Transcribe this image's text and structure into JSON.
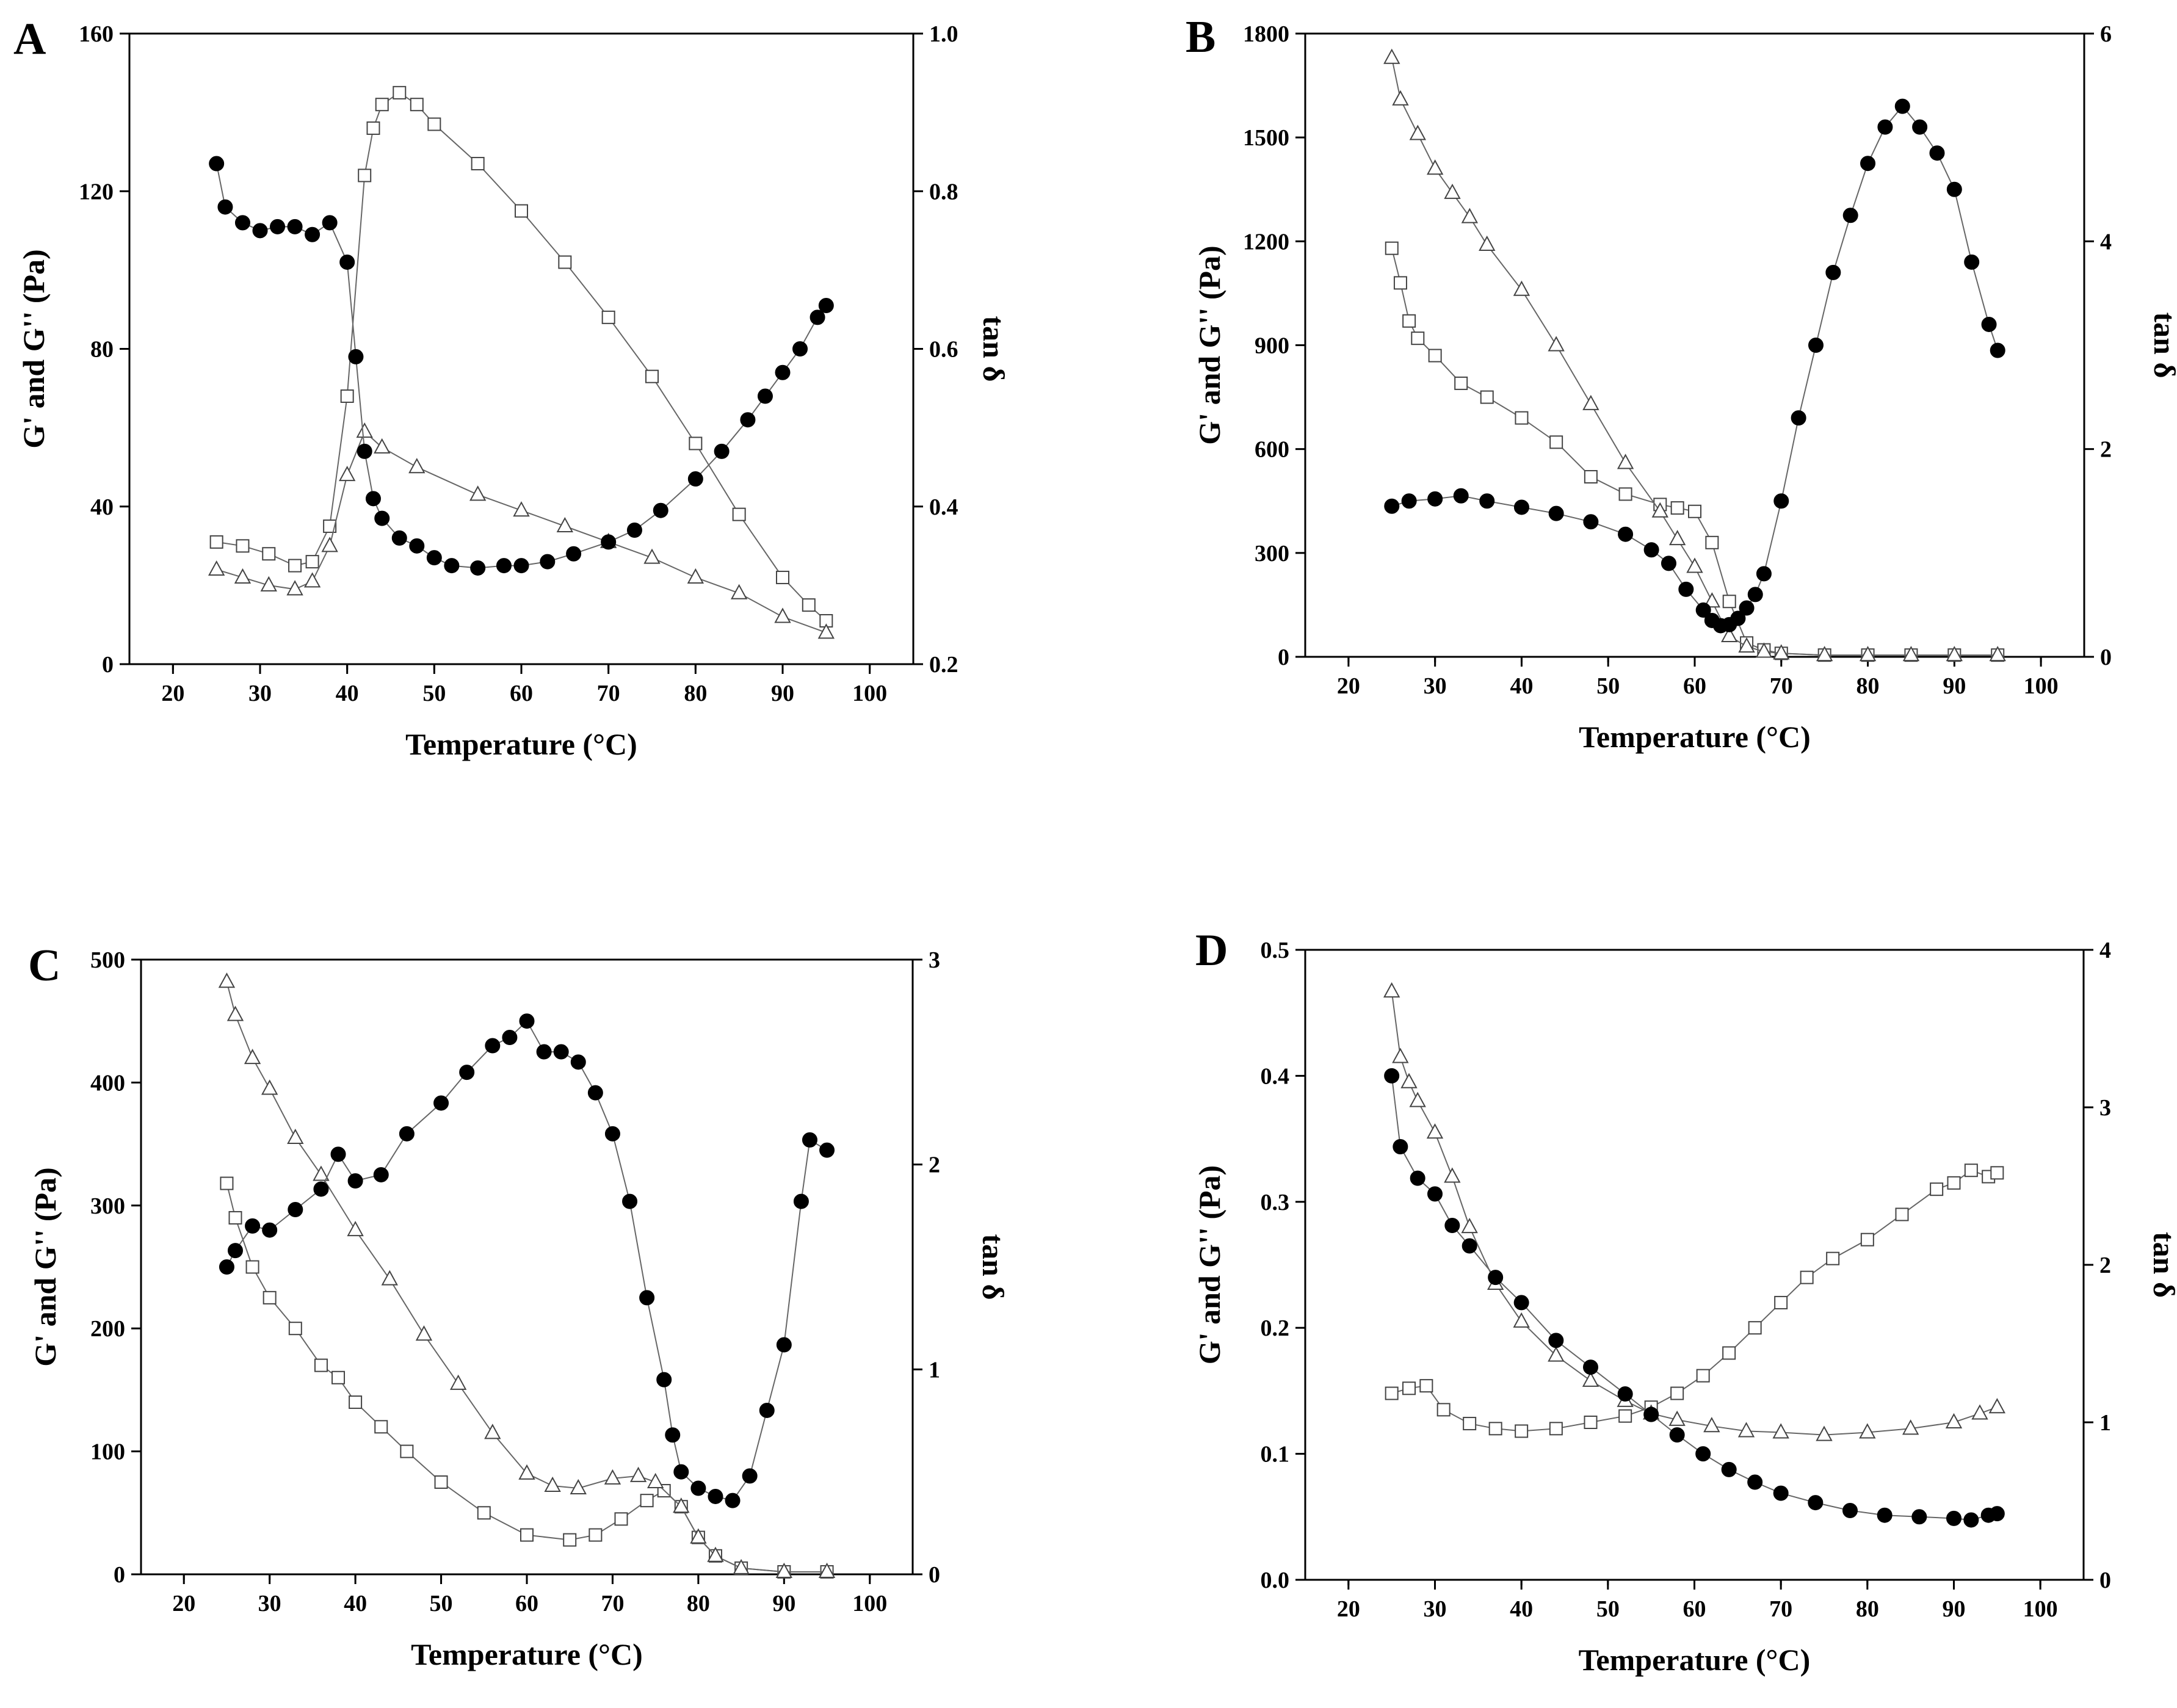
{
  "figure_title": "",
  "chart_data": [
    {
      "panel": "A",
      "type": "scatter",
      "xlabel": "Temperature (°C)",
      "ylabel": "G' and G'' (Pa)",
      "y2label": "tan δ",
      "xlim": [
        15,
        105
      ],
      "xticks": [
        20,
        30,
        40,
        50,
        60,
        70,
        80,
        90,
        100
      ],
      "ylim": [
        0,
        160
      ],
      "yticks": [
        0,
        40,
        80,
        120,
        160
      ],
      "y2lim": [
        0.2,
        1.0
      ],
      "y2ticks": [
        0.2,
        0.4,
        0.6,
        0.8,
        1.0
      ],
      "y2tick_labels": [
        "0.2",
        "0.4",
        "0.6",
        "0.8",
        "1.0"
      ],
      "series": [
        {
          "name": "G'",
          "marker": "square",
          "axis": "left",
          "x": [
            25,
            28,
            31,
            34,
            36,
            38,
            40,
            42,
            43,
            44,
            46,
            48,
            50,
            55,
            60,
            65,
            70,
            75,
            80,
            85,
            90,
            93,
            95
          ],
          "y": [
            31,
            30,
            28,
            25,
            26,
            35,
            68,
            124,
            136,
            142,
            145,
            142,
            137,
            127,
            115,
            102,
            88,
            73,
            56,
            38,
            22,
            15,
            11
          ]
        },
        {
          "name": "G''",
          "marker": "triangle",
          "axis": "left",
          "x": [
            25,
            28,
            31,
            34,
            36,
            38,
            40,
            42,
            44,
            48,
            55,
            60,
            65,
            70,
            75,
            80,
            85,
            90,
            95
          ],
          "y": [
            24,
            22,
            20,
            19,
            21,
            30,
            48,
            59,
            55,
            50,
            43,
            39,
            35,
            31,
            27,
            22,
            18,
            12,
            8
          ]
        },
        {
          "name": "tan δ",
          "marker": "circle",
          "axis": "right",
          "x": [
            25,
            26,
            28,
            30,
            32,
            34,
            36,
            38,
            40,
            41,
            42,
            43,
            44,
            46,
            48,
            50,
            52,
            55,
            58,
            60,
            63,
            66,
            70,
            73,
            76,
            80,
            83,
            86,
            88,
            90,
            92,
            94,
            95
          ],
          "y": [
            0.835,
            0.78,
            0.76,
            0.75,
            0.755,
            0.755,
            0.745,
            0.76,
            0.71,
            0.59,
            0.47,
            0.41,
            0.385,
            0.36,
            0.35,
            0.335,
            0.325,
            0.322,
            0.325,
            0.325,
            0.33,
            0.34,
            0.355,
            0.37,
            0.395,
            0.435,
            0.47,
            0.51,
            0.54,
            0.57,
            0.6,
            0.64,
            0.655
          ]
        }
      ]
    },
    {
      "panel": "B",
      "type": "scatter",
      "xlabel": "Temperature (°C)",
      "ylabel": "G' and G'' (Pa)",
      "y2label": "tan δ",
      "xlim": [
        15,
        105
      ],
      "xticks": [
        20,
        30,
        40,
        50,
        60,
        70,
        80,
        90,
        100
      ],
      "ylim": [
        0,
        1800
      ],
      "yticks": [
        0,
        300,
        600,
        900,
        1200,
        1500,
        1800
      ],
      "y2lim": [
        0,
        6
      ],
      "y2ticks": [
        0,
        2,
        4,
        6
      ],
      "y2tick_labels": [
        "0",
        "2",
        "4",
        "6"
      ],
      "series": [
        {
          "name": "G'",
          "marker": "square",
          "axis": "left",
          "x": [
            25,
            26,
            27,
            28,
            30,
            33,
            36,
            40,
            44,
            48,
            52,
            56,
            58,
            60,
            62,
            64,
            66,
            68,
            70,
            75,
            80,
            85,
            90,
            95
          ],
          "y": [
            1180,
            1080,
            970,
            920,
            870,
            790,
            750,
            690,
            620,
            520,
            470,
            440,
            430,
            420,
            330,
            160,
            40,
            20,
            10,
            5,
            5,
            5,
            5,
            5
          ]
        },
        {
          "name": "G''",
          "marker": "triangle",
          "axis": "left",
          "x": [
            25,
            26,
            28,
            30,
            32,
            34,
            36,
            40,
            44,
            48,
            52,
            56,
            58,
            60,
            62,
            64,
            66,
            68,
            70,
            75,
            80,
            85,
            90,
            95
          ],
          "y": [
            1730,
            1610,
            1510,
            1410,
            1340,
            1270,
            1190,
            1060,
            900,
            730,
            560,
            420,
            340,
            260,
            160,
            60,
            30,
            15,
            10,
            5,
            5,
            5,
            5,
            5
          ]
        },
        {
          "name": "tan δ",
          "marker": "circle",
          "axis": "right",
          "x": [
            25,
            27,
            30,
            33,
            36,
            40,
            44,
            48,
            52,
            55,
            57,
            59,
            61,
            62,
            63,
            64,
            65,
            66,
            67,
            68,
            70,
            72,
            74,
            76,
            78,
            80,
            82,
            84,
            86,
            88,
            90,
            92,
            94,
            95
          ],
          "y": [
            1.45,
            1.5,
            1.52,
            1.55,
            1.5,
            1.44,
            1.38,
            1.3,
            1.18,
            1.03,
            0.9,
            0.65,
            0.45,
            0.35,
            0.3,
            0.31,
            0.37,
            0.47,
            0.6,
            0.8,
            1.5,
            2.3,
            3.0,
            3.7,
            4.25,
            4.75,
            5.1,
            5.3,
            5.1,
            4.85,
            4.5,
            3.8,
            3.2,
            2.95
          ]
        }
      ]
    },
    {
      "panel": "C",
      "type": "scatter",
      "xlabel": "Temperature (°C)",
      "ylabel": "G' and G'' (Pa)",
      "y2label": "tan δ",
      "xlim": [
        15,
        105
      ],
      "xticks": [
        20,
        30,
        40,
        50,
        60,
        70,
        80,
        90,
        100
      ],
      "ylim": [
        0,
        500
      ],
      "yticks": [
        0,
        100,
        200,
        300,
        400,
        500
      ],
      "y2lim": [
        0,
        3
      ],
      "y2ticks": [
        0,
        1,
        2,
        3
      ],
      "y2tick_labels": [
        "0",
        "1",
        "2",
        "3"
      ],
      "series": [
        {
          "name": "G'",
          "marker": "square",
          "axis": "left",
          "x": [
            25,
            26,
            28,
            30,
            33,
            36,
            38,
            40,
            43,
            46,
            50,
            55,
            60,
            65,
            68,
            71,
            74,
            76,
            78,
            80,
            82,
            85,
            90,
            95
          ],
          "y": [
            318,
            290,
            250,
            225,
            200,
            170,
            160,
            140,
            120,
            100,
            75,
            50,
            32,
            28,
            32,
            45,
            60,
            68,
            55,
            30,
            15,
            5,
            2,
            2
          ]
        },
        {
          "name": "G''",
          "marker": "triangle",
          "axis": "left",
          "x": [
            25,
            26,
            28,
            30,
            33,
            36,
            40,
            44,
            48,
            52,
            56,
            60,
            63,
            66,
            70,
            73,
            75,
            78,
            80,
            82,
            85,
            90,
            95
          ],
          "y": [
            482,
            455,
            420,
            395,
            355,
            325,
            280,
            240,
            195,
            155,
            115,
            82,
            72,
            70,
            78,
            80,
            75,
            55,
            30,
            15,
            5,
            2,
            2
          ]
        },
        {
          "name": "tan δ",
          "marker": "circle",
          "axis": "right",
          "x": [
            25,
            26,
            28,
            30,
            33,
            36,
            38,
            40,
            43,
            46,
            50,
            53,
            56,
            58,
            60,
            62,
            64,
            66,
            68,
            70,
            72,
            74,
            76,
            77,
            78,
            80,
            82,
            84,
            86,
            88,
            90,
            92,
            93,
            95
          ],
          "y": [
            1.5,
            1.58,
            1.7,
            1.68,
            1.78,
            1.88,
            2.05,
            1.92,
            1.95,
            2.15,
            2.3,
            2.45,
            2.58,
            2.62,
            2.7,
            2.55,
            2.55,
            2.5,
            2.35,
            2.15,
            1.82,
            1.35,
            0.95,
            0.68,
            0.5,
            0.42,
            0.38,
            0.36,
            0.48,
            0.8,
            1.12,
            1.82,
            2.12,
            2.07
          ]
        }
      ]
    },
    {
      "panel": "D",
      "type": "scatter",
      "xlabel": "Temperature (°C)",
      "ylabel": "G' and G'' (Pa)",
      "y2label": "tan δ",
      "xlim": [
        15,
        105
      ],
      "xticks": [
        20,
        30,
        40,
        50,
        60,
        70,
        80,
        90,
        100
      ],
      "ylim": [
        0,
        0.5
      ],
      "yticks": [
        0,
        0.1,
        0.2,
        0.3,
        0.4,
        0.5
      ],
      "ytick_labels": [
        "0.0",
        "0.1",
        "0.2",
        "0.3",
        "0.4",
        "0.5"
      ],
      "y2lim": [
        0,
        4
      ],
      "y2ticks": [
        0,
        1,
        2,
        3,
        4
      ],
      "y2tick_labels": [
        "0",
        "1",
        "2",
        "3",
        "4"
      ],
      "series": [
        {
          "name": "G'",
          "marker": "square",
          "axis": "left",
          "x": [
            25,
            27,
            29,
            31,
            34,
            37,
            40,
            44,
            48,
            52,
            55,
            58,
            61,
            64,
            67,
            70,
            73,
            76,
            80,
            84,
            88,
            90,
            92,
            94,
            95
          ],
          "y": [
            0.148,
            0.152,
            0.154,
            0.135,
            0.124,
            0.12,
            0.118,
            0.12,
            0.125,
            0.13,
            0.137,
            0.148,
            0.162,
            0.18,
            0.2,
            0.22,
            0.24,
            0.255,
            0.27,
            0.29,
            0.31,
            0.315,
            0.325,
            0.32,
            0.323
          ]
        },
        {
          "name": "G''",
          "marker": "triangle",
          "axis": "left",
          "x": [
            25,
            26,
            27,
            28,
            30,
            32,
            34,
            37,
            40,
            44,
            48,
            52,
            55,
            58,
            62,
            66,
            70,
            75,
            80,
            85,
            90,
            93,
            95
          ],
          "y": [
            0.467,
            0.415,
            0.395,
            0.38,
            0.355,
            0.32,
            0.28,
            0.235,
            0.205,
            0.178,
            0.158,
            0.142,
            0.132,
            0.127,
            0.122,
            0.118,
            0.117,
            0.115,
            0.117,
            0.12,
            0.125,
            0.132,
            0.137
          ]
        },
        {
          "name": "tan δ",
          "marker": "circle",
          "axis": "right",
          "x": [
            25,
            26,
            28,
            30,
            32,
            34,
            37,
            40,
            44,
            48,
            52,
            55,
            58,
            61,
            64,
            67,
            70,
            74,
            78,
            82,
            86,
            90,
            92,
            94,
            95
          ],
          "y": [
            3.2,
            2.75,
            2.55,
            2.45,
            2.25,
            2.12,
            1.92,
            1.76,
            1.52,
            1.35,
            1.18,
            1.05,
            0.92,
            0.8,
            0.7,
            0.62,
            0.55,
            0.49,
            0.44,
            0.41,
            0.4,
            0.39,
            0.38,
            0.41,
            0.42
          ]
        }
      ]
    }
  ]
}
